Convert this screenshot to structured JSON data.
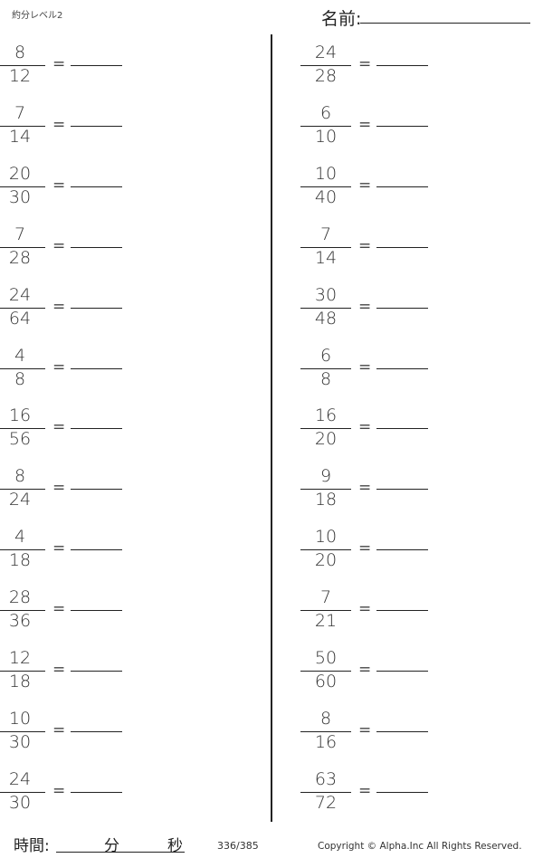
{
  "header": {
    "title": "約分レベル2",
    "name_label": "名前:"
  },
  "left": [
    {
      "n": "8",
      "d": "12"
    },
    {
      "n": "7",
      "d": "14"
    },
    {
      "n": "20",
      "d": "30"
    },
    {
      "n": "7",
      "d": "28"
    },
    {
      "n": "24",
      "d": "64"
    },
    {
      "n": "4",
      "d": "8"
    },
    {
      "n": "16",
      "d": "56"
    },
    {
      "n": "8",
      "d": "24"
    },
    {
      "n": "4",
      "d": "18"
    },
    {
      "n": "28",
      "d": "36"
    },
    {
      "n": "12",
      "d": "18"
    },
    {
      "n": "10",
      "d": "30"
    },
    {
      "n": "24",
      "d": "30"
    }
  ],
  "right": [
    {
      "n": "24",
      "d": "28"
    },
    {
      "n": "6",
      "d": "10"
    },
    {
      "n": "10",
      "d": "40"
    },
    {
      "n": "7",
      "d": "14"
    },
    {
      "n": "30",
      "d": "48"
    },
    {
      "n": "6",
      "d": "8"
    },
    {
      "n": "16",
      "d": "20"
    },
    {
      "n": "9",
      "d": "18"
    },
    {
      "n": "10",
      "d": "20"
    },
    {
      "n": "7",
      "d": "21"
    },
    {
      "n": "50",
      "d": "60"
    },
    {
      "n": "8",
      "d": "16"
    },
    {
      "n": "63",
      "d": "72"
    }
  ],
  "equals": "=",
  "footer": {
    "time_label": "時間:",
    "minutes": "分",
    "seconds": "秒",
    "page": "336/385",
    "copyright": "Copyright ©  Alpha.Inc All Rights Reserved."
  }
}
